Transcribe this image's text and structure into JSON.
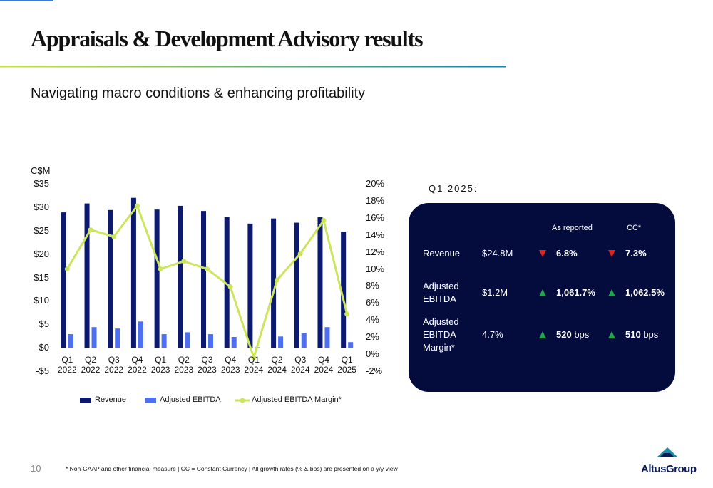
{
  "header": {
    "title": "Appraisals & Development Advisory results",
    "subtitle": "Navigating macro conditions & enhancing profitability"
  },
  "chart_data": {
    "type": "bar",
    "y_label": "C$M",
    "categories": [
      "Q1 2022",
      "Q2 2022",
      "Q3 2022",
      "Q4 2022",
      "Q1 2023",
      "Q2 2023",
      "Q3 2023",
      "Q4 2023",
      "Q1 2024",
      "Q2 2024",
      "Q3 2024",
      "Q4 2024",
      "Q1 2025"
    ],
    "series": [
      {
        "name": "Revenue",
        "type": "bar",
        "color": "#0b1a6e",
        "values": [
          28.9,
          30.8,
          29.4,
          32.0,
          29.5,
          30.3,
          29.2,
          27.9,
          26.5,
          27.6,
          26.7,
          27.9,
          24.8
        ]
      },
      {
        "name": "Adjusted EBITDA",
        "type": "bar",
        "color": "#4f6ff2",
        "values": [
          2.9,
          4.4,
          4.1,
          5.6,
          2.9,
          3.3,
          2.9,
          2.3,
          0.1,
          2.4,
          3.2,
          4.4,
          1.2
        ]
      },
      {
        "name": "Adjusted EBITDA Margin*",
        "type": "line",
        "axis": "y2",
        "color": "#cbe65c",
        "values": [
          10.0,
          14.6,
          13.8,
          17.4,
          10.0,
          10.9,
          10.0,
          7.9,
          -0.4,
          8.7,
          11.8,
          15.7,
          4.7
        ]
      }
    ],
    "ylim": [
      -5,
      35
    ],
    "yticks": [
      {
        "value": -5,
        "label": "-$5"
      },
      {
        "value": 0,
        "label": "$0"
      },
      {
        "value": 5,
        "label": "$5"
      },
      {
        "value": 10,
        "label": "$10"
      },
      {
        "value": 15,
        "label": "$15"
      },
      {
        "value": 20,
        "label": "$20"
      },
      {
        "value": 25,
        "label": "$25"
      },
      {
        "value": 30,
        "label": "$30"
      },
      {
        "value": 35,
        "label": "$35"
      }
    ],
    "y2lim": [
      -2,
      20
    ],
    "y2ticks": [
      {
        "value": -2,
        "label": "-2%"
      },
      {
        "value": 0,
        "label": "0%"
      },
      {
        "value": 2,
        "label": "2%"
      },
      {
        "value": 4,
        "label": "4%"
      },
      {
        "value": 6,
        "label": "6%"
      },
      {
        "value": 8,
        "label": "8%"
      },
      {
        "value": 10,
        "label": "10%"
      },
      {
        "value": 12,
        "label": "12%"
      },
      {
        "value": 14,
        "label": "14%"
      },
      {
        "value": 16,
        "label": "16%"
      },
      {
        "value": 18,
        "label": "18%"
      },
      {
        "value": 20,
        "label": "20%"
      }
    ],
    "grid": false,
    "legend": "bottom"
  },
  "summary": {
    "title": "Q1 2025:",
    "columns": [
      "As reported",
      "CC*"
    ],
    "rows": [
      {
        "label": "Revenue",
        "amount": "$24.8M",
        "reported": {
          "direction": "down",
          "value": "6.8%"
        },
        "cc": {
          "direction": "down",
          "value": "7.3%"
        }
      },
      {
        "label": "Adjusted EBITDA",
        "amount": "$1.2M",
        "reported": {
          "direction": "up",
          "value": "1,061.7%"
        },
        "cc": {
          "direction": "up",
          "value": "1,062.5%"
        }
      },
      {
        "label": "Adjusted EBITDA Margin*",
        "amount": "4.7%",
        "reported": {
          "direction": "up",
          "value": "520",
          "unit": "bps"
        },
        "cc": {
          "direction": "up",
          "value": "510",
          "unit": "bps"
        }
      }
    ]
  },
  "footer": {
    "page": "10",
    "note": "* Non-GAAP and other financial measure | CC = Constant Currency | All growth rates (% & bps) are presented on a y/y view",
    "brand": "AltusGroup"
  }
}
